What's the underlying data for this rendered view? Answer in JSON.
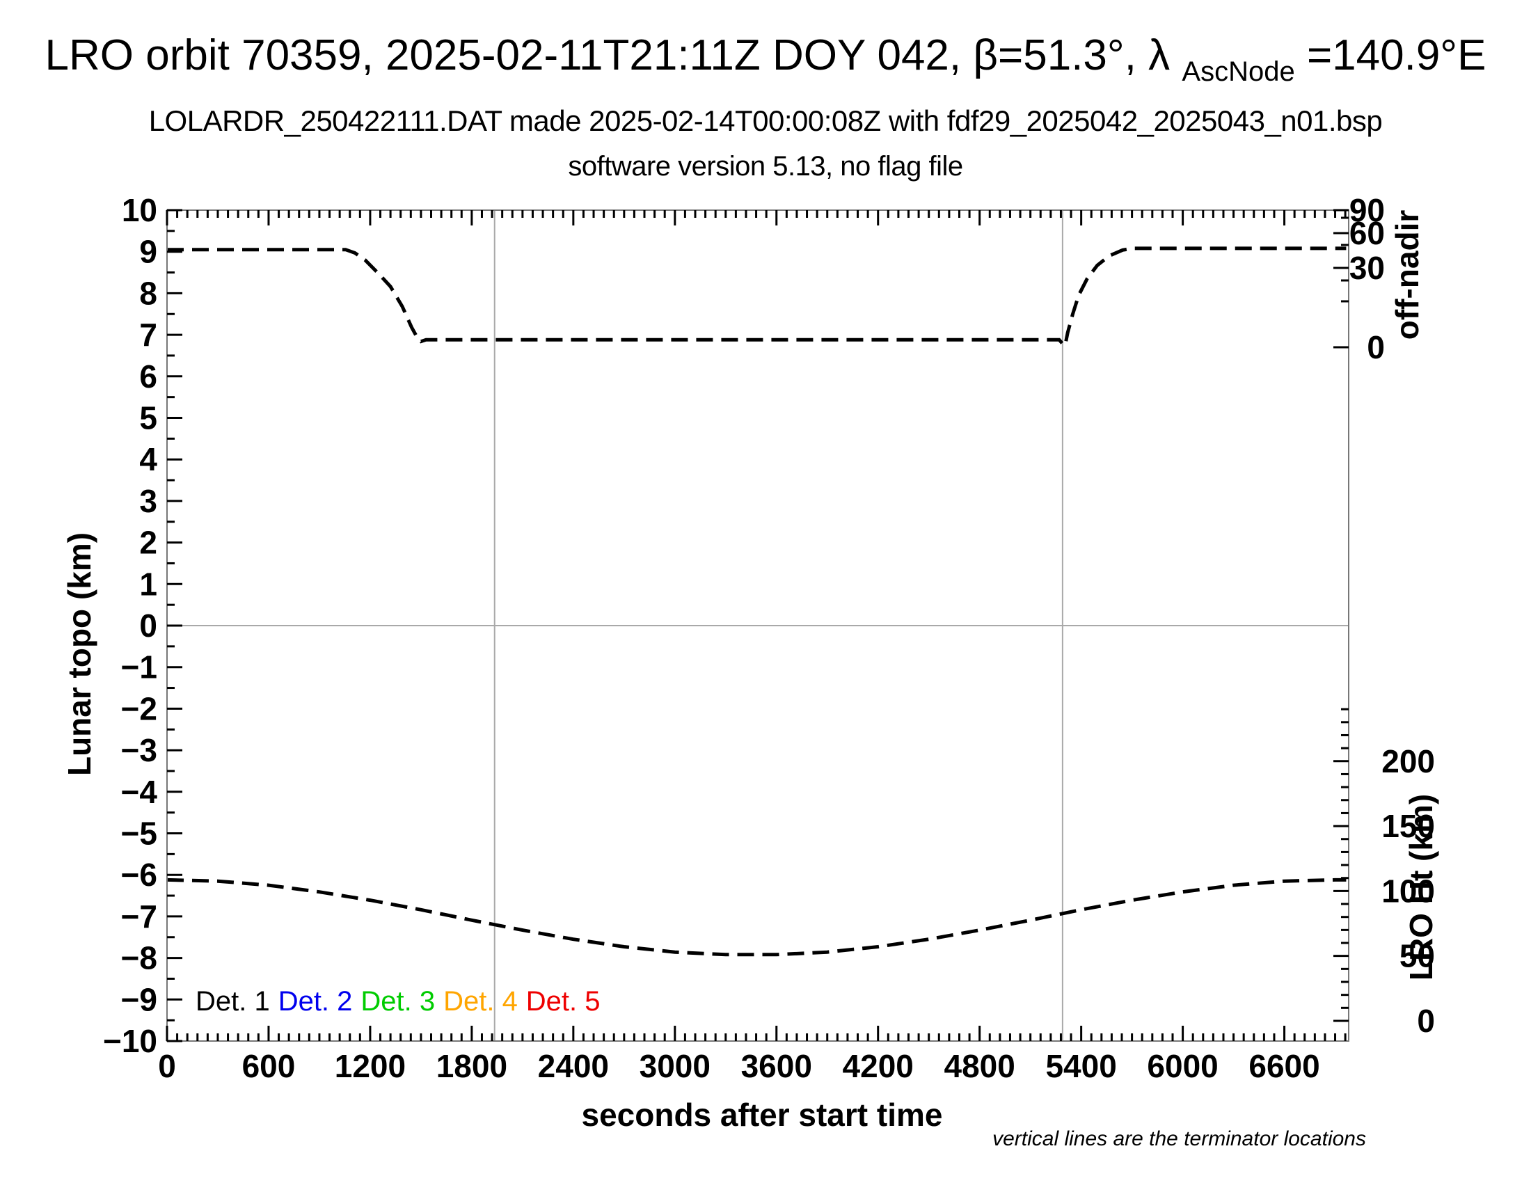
{
  "header": {
    "title_part1": "LRO orbit 70359, 2025-02-11T21:11Z DOY 042, β=51.3°, λ",
    "title_subscript": "AscNode",
    "title_part2": "=140.9°E",
    "subtitle1": "LOLARDR_250422111.DAT made 2025-02-14T00:00:08Z with fdf29_2025042_2025043_n01.bsp",
    "subtitle2": "software version 5.13, no flag file"
  },
  "footnote": "vertical lines are the terminator locations",
  "axes": {
    "x": {
      "label": "seconds after start time",
      "min": 0,
      "max": 6980,
      "major_step": 600,
      "minor_step": 60,
      "tick_labels": [
        "0",
        "600",
        "1200",
        "1800",
        "2400",
        "3000",
        "3600",
        "4200",
        "4800",
        "5400",
        "6000",
        "6600"
      ]
    },
    "y_left": {
      "label": "Lunar topo (km)",
      "min": -10,
      "max": 10,
      "major_step": 1,
      "minor_step": 0.5,
      "tick_labels": [
        "10",
        "9",
        "8",
        "7",
        "6",
        "5",
        "4",
        "3",
        "2",
        "1",
        "0",
        "−1",
        "−2",
        "−3",
        "−4",
        "−5",
        "−6",
        "−7",
        "−8",
        "−9",
        "−10"
      ]
    },
    "y_right_offnadir": {
      "label": "off-nadir",
      "ticks": [
        {
          "value": "90",
          "frac": 0.0
        },
        {
          "value": "60",
          "frac": 0.0276
        },
        {
          "value": "30",
          "frac": 0.0695
        },
        {
          "value": "0",
          "frac": 0.165
        }
      ],
      "minor_fracs": [
        0.0092,
        0.0419,
        0.0846,
        0.1097
      ]
    },
    "y_right_ht": {
      "label": "LRO Ht (km)",
      "zero_frac": 0.9757,
      "frac_per_km": 0.0015628,
      "major_step_km": 50,
      "minor_step_km": 10,
      "max_km": 245,
      "tick_labels": [
        "0",
        "50",
        "100",
        "150",
        "200"
      ]
    }
  },
  "legend": {
    "entries": [
      {
        "label": "Det. 1",
        "color": "#000000"
      },
      {
        "label": "Det. 2",
        "color": "#0000ee"
      },
      {
        "label": "Det. 3",
        "color": "#00cc00"
      },
      {
        "label": "Det. 4",
        "color": "#ffa500"
      },
      {
        "label": "Det. 5",
        "color": "#ee0000"
      }
    ]
  },
  "chart_data": {
    "type": "line",
    "title": "LRO orbit 70359, 2025-02-11T21:11Z DOY 042, β=51.3°, λAscNode=140.9°E",
    "xlabel": "seconds after start time",
    "x_range": [
      0,
      6980
    ],
    "y_left_range": [
      -10,
      10
    ],
    "grid": "off",
    "line_style": "dashed",
    "line_color": "#000000",
    "terminator_lines_x_seconds": [
      1935,
      5290
    ],
    "zero_gridline_y_left": 0,
    "series": [
      {
        "name": "off-nadir angle",
        "read_on_axis": "y_right_offnadir",
        "offnadir_deg_approx": {
          "high_plateau": 46,
          "low_plateau": 2
        },
        "points": [
          [
            0,
            9.05
          ],
          [
            1055,
            9.05
          ],
          [
            1110,
            8.97
          ],
          [
            1170,
            8.8
          ],
          [
            1250,
            8.47
          ],
          [
            1320,
            8.16
          ],
          [
            1390,
            7.68
          ],
          [
            1445,
            7.18
          ],
          [
            1480,
            6.92
          ],
          [
            1500,
            6.84
          ],
          [
            1530,
            6.88
          ],
          [
            5270,
            6.88
          ],
          [
            5291,
            6.78
          ],
          [
            5305,
            6.74
          ],
          [
            5320,
            7.05
          ],
          [
            5350,
            7.5
          ],
          [
            5385,
            7.95
          ],
          [
            5435,
            8.35
          ],
          [
            5495,
            8.67
          ],
          [
            5565,
            8.9
          ],
          [
            5645,
            9.04
          ],
          [
            5705,
            9.08
          ],
          [
            6965,
            9.08
          ]
        ]
      },
      {
        "name": "LRO height",
        "read_on_axis": "y_right_ht",
        "ht_km_approx": {
          "start": 109,
          "min": 51,
          "end": 109
        },
        "points": [
          [
            0,
            -6.12
          ],
          [
            300,
            -6.15
          ],
          [
            600,
            -6.25
          ],
          [
            900,
            -6.41
          ],
          [
            1200,
            -6.61
          ],
          [
            1500,
            -6.84
          ],
          [
            1800,
            -7.09
          ],
          [
            2100,
            -7.33
          ],
          [
            2400,
            -7.55
          ],
          [
            2700,
            -7.73
          ],
          [
            3000,
            -7.86
          ],
          [
            3300,
            -7.92
          ],
          [
            3600,
            -7.92
          ],
          [
            3900,
            -7.86
          ],
          [
            4200,
            -7.73
          ],
          [
            4500,
            -7.55
          ],
          [
            4800,
            -7.33
          ],
          [
            5100,
            -7.09
          ],
          [
            5400,
            -6.84
          ],
          [
            5700,
            -6.61
          ],
          [
            6000,
            -6.41
          ],
          [
            6300,
            -6.25
          ],
          [
            6600,
            -6.15
          ],
          [
            6900,
            -6.12
          ],
          [
            6965,
            -6.12
          ]
        ]
      }
    ]
  }
}
